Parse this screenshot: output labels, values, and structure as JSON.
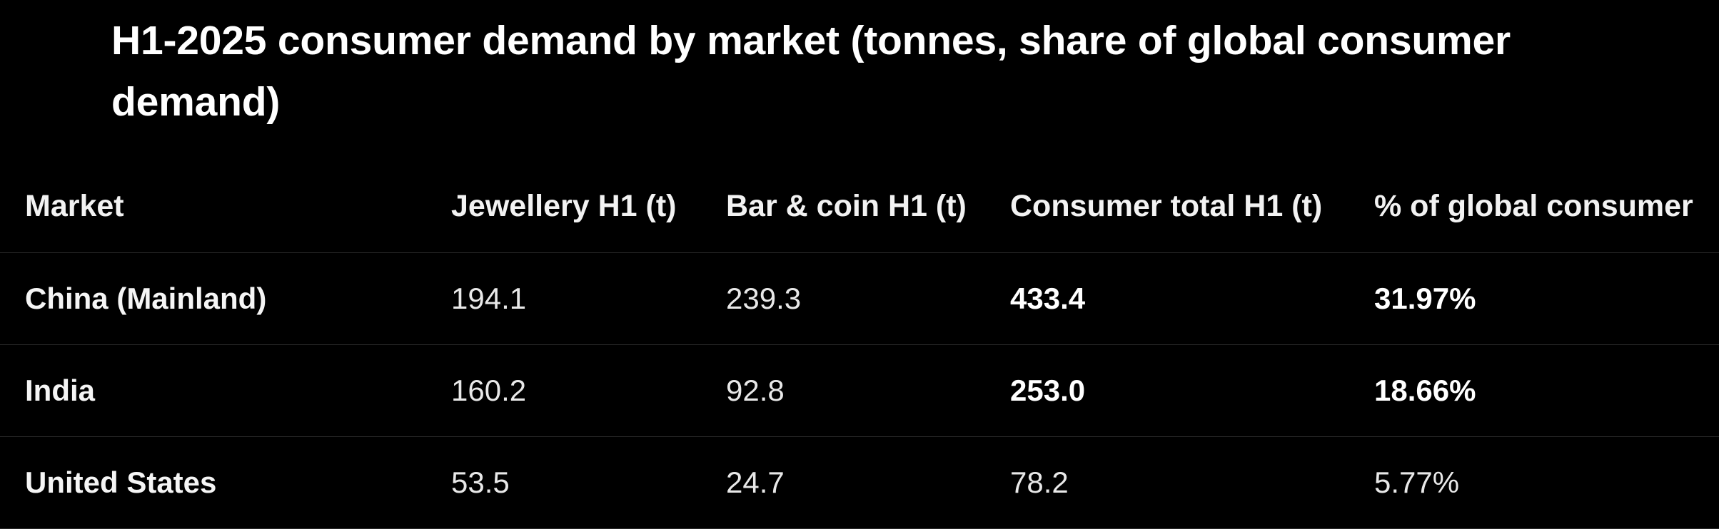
{
  "title": "H1-2025 consumer demand by market (tonnes, share of global consumer demand)",
  "table": {
    "headers": [
      "Market",
      "Jewellery H1 (t)",
      "Bar & coin H1 (t)",
      "Consumer total H1 (t)",
      "% of global consumer"
    ],
    "rows": [
      {
        "market": "China (Mainland)",
        "jewellery": "194.1",
        "bar_coin": "239.3",
        "consumer_total": "433.4",
        "share": "31.97%",
        "bold_totals": true
      },
      {
        "market": "India",
        "jewellery": "160.2",
        "bar_coin": "92.8",
        "consumer_total": "253.0",
        "share": "18.66%",
        "bold_totals": true
      },
      {
        "market": "United States",
        "jewellery": "53.5",
        "bar_coin": "24.7",
        "consumer_total": "78.2",
        "share": "5.77%",
        "bold_totals": false
      }
    ]
  }
}
